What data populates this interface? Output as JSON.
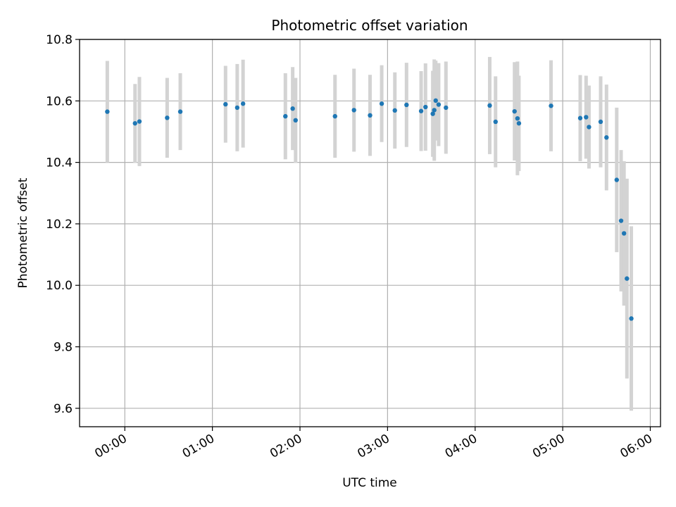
{
  "chart_data": {
    "type": "scatter",
    "title": "Photometric offset variation",
    "xlabel": "UTC time",
    "ylabel": "Photometric offset",
    "xlim": [
      "23:29:00",
      "06:07:00"
    ],
    "ylim": [
      9.54,
      10.8
    ],
    "grid": true,
    "x_ticks": [
      "00:00",
      "01:00",
      "02:00",
      "03:00",
      "04:00",
      "05:00",
      "06:00"
    ],
    "y_ticks": [
      "9.6",
      "9.8",
      "10.0",
      "10.2",
      "10.4",
      "10.6",
      "10.8"
    ],
    "colors": {
      "point": "#1f77b4",
      "errorbar": "#d3d3d3",
      "grid": "#b0b0b0"
    },
    "series": [
      {
        "x": [
          "23:48",
          "00:07",
          "00:10",
          "00:29",
          "00:38",
          "01:09",
          "01:17",
          "01:21",
          "01:50",
          "01:55",
          "01:57",
          "02:24",
          "02:37",
          "02:48",
          "02:56",
          "03:05",
          "03:13",
          "03:23",
          "03:26",
          "03:31",
          "03:32",
          "03:33",
          "03:35",
          "03:40",
          "04:10",
          "04:14",
          "04:27",
          "04:29",
          "04:30",
          "04:52",
          "05:12",
          "05:16",
          "05:18",
          "05:26",
          "05:30",
          "05:37",
          "05:40",
          "05:42",
          "05:44",
          "05:47"
        ],
        "y": [
          10.565,
          10.527,
          10.533,
          10.545,
          10.565,
          10.589,
          10.578,
          10.591,
          10.55,
          10.575,
          10.537,
          10.55,
          10.57,
          10.553,
          10.591,
          10.569,
          10.587,
          10.567,
          10.58,
          10.558,
          10.57,
          10.601,
          10.588,
          10.578,
          10.585,
          10.532,
          10.566,
          10.543,
          10.527,
          10.584,
          10.544,
          10.547,
          10.515,
          10.532,
          10.481,
          10.343,
          10.21,
          10.169,
          10.022,
          9.892
        ],
        "yerr": [
          0.165,
          0.128,
          0.145,
          0.13,
          0.125,
          0.125,
          0.142,
          0.143,
          0.14,
          0.135,
          0.138,
          0.135,
          0.135,
          0.132,
          0.125,
          0.124,
          0.137,
          0.13,
          0.142,
          0.14,
          0.165,
          0.13,
          0.135,
          0.15,
          0.158,
          0.148,
          0.16,
          0.185,
          0.155,
          0.148,
          0.14,
          0.135,
          0.135,
          0.148,
          0.172,
          0.235,
          0.23,
          0.235,
          0.325,
          0.3
        ]
      }
    ]
  }
}
